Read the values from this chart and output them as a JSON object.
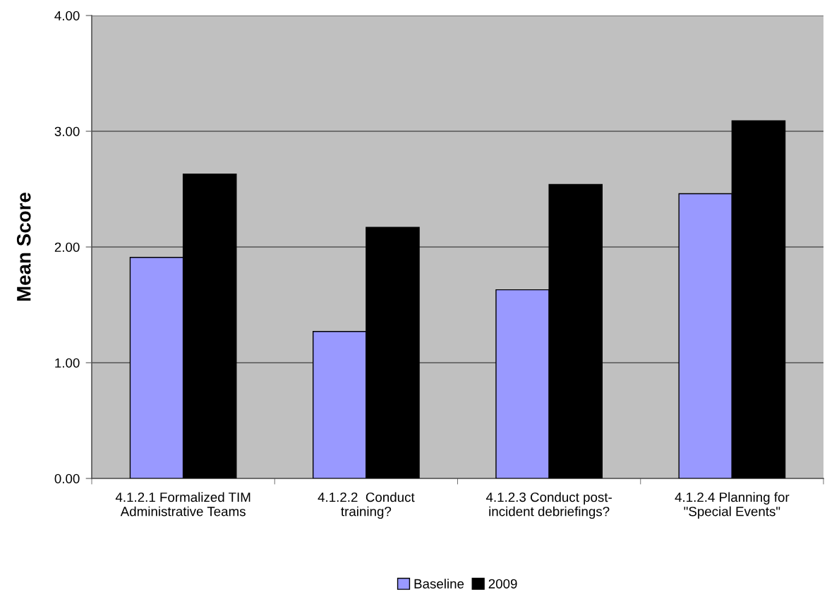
{
  "chart_data": {
    "type": "bar",
    "ylabel": "Mean Score",
    "categories": [
      "4.1.2.1 Formalized TIM\nAdministrative Teams",
      "4.1.2.2  Conduct\ntraining?",
      "4.1.2.3 Conduct post-\nincident debriefings?",
      "4.1.2.4 Planning for\n\"Special Events\""
    ],
    "series": [
      {
        "name": "Baseline",
        "color": "#9999ff",
        "values": [
          1.91,
          1.27,
          1.63,
          2.46
        ]
      },
      {
        "name": "2009",
        "color": "#000000",
        "values": [
          2.63,
          2.17,
          2.54,
          3.09
        ]
      }
    ],
    "ylim": [
      0,
      4
    ],
    "yticks": [
      {
        "value": 0,
        "label": "0.00"
      },
      {
        "value": 1,
        "label": "1.00"
      },
      {
        "value": 2,
        "label": "2.00"
      },
      {
        "value": 3,
        "label": "3.00"
      },
      {
        "value": 4,
        "label": "4.00"
      }
    ],
    "grid": "y",
    "legend": "bottom"
  }
}
